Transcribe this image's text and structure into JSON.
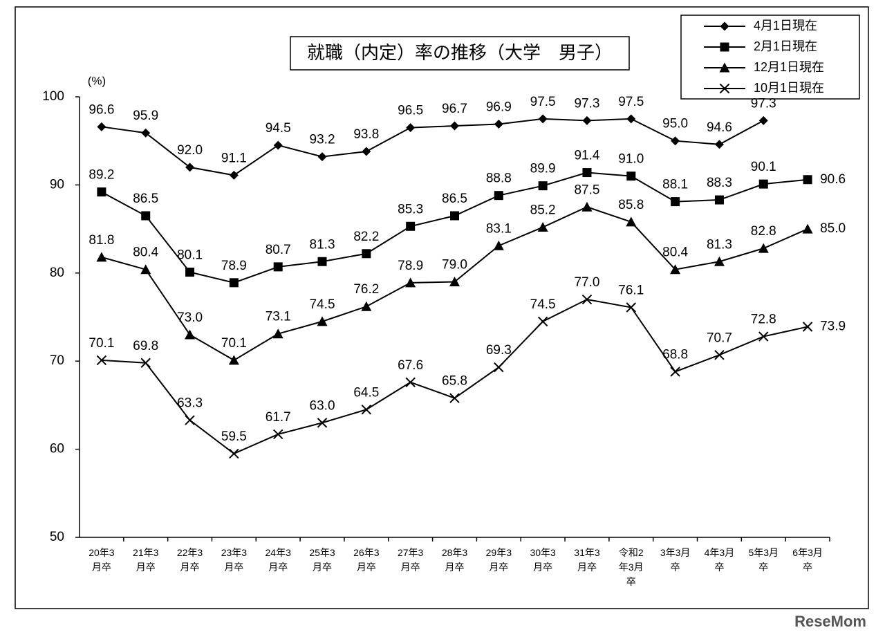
{
  "chart_data": {
    "type": "line",
    "title": "就職（内定）率の推移（大学　男子）",
    "y_label": "(%)",
    "watermark": "ReseMom",
    "categories": [
      "20年3月卒",
      "21年3月卒",
      "22年3月卒",
      "23年3月卒",
      "24年3月卒",
      "25年3月卒",
      "26年3月卒",
      "27年3月卒",
      "28年3月卒",
      "29年3月卒",
      "30年3月卒",
      "31年3月卒",
      "令和2年3月卒",
      "3年3月卒",
      "4年3月卒",
      "5年3月卒",
      "6年3月卒"
    ],
    "ylim": [
      50,
      100
    ],
    "yticks": [
      50,
      60,
      70,
      80,
      90,
      100
    ],
    "legend": "top-right",
    "series": [
      {
        "name": "4月1日現在",
        "color": "#000000",
        "marker": "diamond",
        "values": [
          96.6,
          95.9,
          92.0,
          91.1,
          94.5,
          93.2,
          93.8,
          96.5,
          96.7,
          96.9,
          97.5,
          97.3,
          97.5,
          95.0,
          94.6,
          97.3,
          null
        ],
        "value_labels": [
          "96.6",
          "95.9",
          "92.0",
          "91.1",
          "94.5",
          "93.2",
          "93.8",
          "96.5",
          "96.7",
          "96.9",
          "97.5",
          "97.3",
          "97.5",
          "95.0",
          "94.6",
          "97.3",
          null
        ]
      },
      {
        "name": "2月1日現在",
        "color": "#000000",
        "marker": "square",
        "values": [
          89.2,
          86.5,
          80.1,
          78.9,
          80.7,
          81.3,
          82.2,
          85.3,
          86.5,
          88.8,
          89.9,
          91.4,
          91.0,
          88.1,
          88.3,
          90.1,
          90.6
        ],
        "value_labels": [
          "89.2",
          "86.5",
          "80.1",
          "78.9",
          "80.7",
          "81.3",
          "82.2",
          "85.3",
          "86.5",
          "88.8",
          "89.9",
          "91.4",
          "91.0",
          "88.1",
          "88.3",
          "90.1",
          "90.6"
        ]
      },
      {
        "name": "12月1日現在",
        "color": "#000000",
        "marker": "triangle",
        "values": [
          81.8,
          80.4,
          73.0,
          70.1,
          73.1,
          74.5,
          76.2,
          78.9,
          79.0,
          83.1,
          85.2,
          87.5,
          85.8,
          80.4,
          81.3,
          82.8,
          85.0
        ],
        "value_labels": [
          "81.8",
          "80.4",
          "73.0",
          "70.1",
          "73.1",
          "74.5",
          "76.2",
          "78.9",
          "79.0",
          "83.1",
          "85.2",
          "87.5",
          "85.8",
          "80.4",
          "81.3",
          "82.8",
          "85.0"
        ]
      },
      {
        "name": "10月1日現在",
        "color": "#000000",
        "marker": "x",
        "values": [
          70.1,
          69.8,
          63.3,
          59.5,
          61.7,
          63.0,
          64.5,
          67.6,
          65.8,
          69.3,
          74.5,
          77.0,
          76.1,
          68.8,
          70.7,
          72.8,
          73.9
        ],
        "value_labels": [
          "70.1",
          "69.8",
          "63.3",
          "59.5",
          "61.7",
          "63.0",
          "64.5",
          "67.6",
          "65.8",
          "69.3",
          "74.5",
          "77.0",
          "76.1",
          "68.8",
          "70.7",
          "72.8",
          "73.9"
        ]
      }
    ]
  }
}
